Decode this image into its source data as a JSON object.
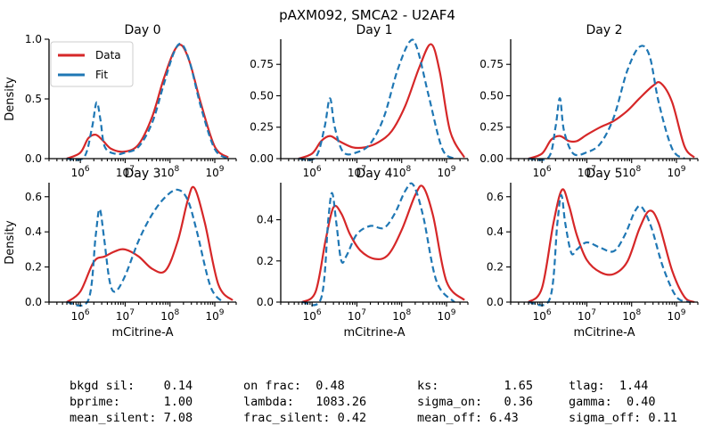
{
  "figure": {
    "title": "pAXM092, SMCA2 - U2AF4",
    "ylabel": "Density",
    "xlabel": "mCitrine-A"
  },
  "legend": {
    "data_label": "Data",
    "fit_label": "Fit",
    "data_color": "#d62728",
    "fit_color": "#1f77b4",
    "placement": "upper-left of Day 0"
  },
  "stats": {
    "rows": [
      [
        "bkgd sil:    0.14",
        "on frac:  0.48",
        "ks:         1.65",
        "tlag:  1.44"
      ],
      [
        "bprime:      1.00",
        "lambda:   1083.26",
        "sigma_on:   0.36",
        "gamma:  0.40"
      ],
      [
        "mean_silent: 7.08",
        "frac_silent: 0.42",
        "mean_off: 6.43",
        "sigma_off: 0.11"
      ]
    ]
  },
  "chart_data": [
    {
      "type": "line",
      "title": "Day 0",
      "xscale": "log",
      "xlim": [
        200000,
        3000000000
      ],
      "ylim": [
        0,
        1.0
      ],
      "yticks": [
        0.0,
        0.5,
        1.0
      ],
      "ytick_labels": [
        "0.0",
        "0.5",
        "1.0"
      ],
      "xticks": [
        1000000,
        10000000,
        100000000,
        1000000000
      ],
      "xtick_labels": [
        "10^6",
        "10^7",
        "10^8",
        "10^9"
      ],
      "series": [
        {
          "name": "Data",
          "color": "#d62728",
          "style": "solid",
          "x": [
            500000,
            1000000,
            1500000,
            2200000,
            3200000,
            5000000,
            10000000,
            20000000,
            40000000,
            70000000,
            120000000,
            180000000,
            280000000,
            500000000,
            1000000000,
            2000000000
          ],
          "y": [
            0.0,
            0.05,
            0.17,
            0.2,
            0.15,
            0.08,
            0.06,
            0.12,
            0.35,
            0.65,
            0.89,
            0.95,
            0.8,
            0.45,
            0.1,
            0.01
          ]
        },
        {
          "name": "Fit",
          "color": "#1f77b4",
          "style": "dashed",
          "x": [
            500000,
            1200000,
            1800000,
            2300000,
            2800000,
            3500000,
            6000000,
            10000000,
            20000000,
            40000000,
            70000000,
            120000000,
            180000000,
            280000000,
            500000000,
            1000000000,
            2000000000
          ],
          "y": [
            0.0,
            0.01,
            0.25,
            0.47,
            0.33,
            0.1,
            0.04,
            0.05,
            0.1,
            0.3,
            0.6,
            0.88,
            0.96,
            0.8,
            0.42,
            0.08,
            0.0
          ]
        }
      ]
    },
    {
      "type": "line",
      "title": "Day 1",
      "xscale": "log",
      "xlim": [
        200000,
        3000000000
      ],
      "ylim": [
        0,
        0.95
      ],
      "yticks": [
        0.0,
        0.25,
        0.5,
        0.75
      ],
      "ytick_labels": [
        "0.00",
        "0.25",
        "0.50",
        "0.75"
      ],
      "xticks": [
        1000000,
        10000000,
        100000000,
        1000000000
      ],
      "xtick_labels": [
        "10^6",
        "10^7",
        "10^8",
        "10^9"
      ],
      "series": [
        {
          "name": "Data",
          "color": "#d62728",
          "style": "solid",
          "x": [
            500000,
            1000000,
            1600000,
            2500000,
            4000000,
            8000000,
            15000000,
            30000000,
            60000000,
            120000000,
            250000000,
            450000000,
            700000000,
            1200000000,
            2500000000
          ],
          "y": [
            0.0,
            0.04,
            0.14,
            0.18,
            0.14,
            0.09,
            0.09,
            0.13,
            0.22,
            0.42,
            0.73,
            0.91,
            0.7,
            0.22,
            0.01
          ]
        },
        {
          "name": "Fit",
          "color": "#1f77b4",
          "style": "dashed",
          "x": [
            500000,
            1200000,
            1900000,
            2500000,
            3200000,
            5000000,
            10000000,
            20000000,
            40000000,
            80000000,
            150000000,
            220000000,
            400000000,
            800000000,
            1500000000
          ],
          "y": [
            0.0,
            0.01,
            0.25,
            0.48,
            0.25,
            0.05,
            0.05,
            0.12,
            0.33,
            0.7,
            0.93,
            0.88,
            0.5,
            0.08,
            0.0
          ]
        }
      ]
    },
    {
      "type": "line",
      "title": "Day 2",
      "xscale": "log",
      "xlim": [
        200000,
        3000000000
      ],
      "ylim": [
        0,
        0.95
      ],
      "yticks": [
        0.0,
        0.25,
        0.5,
        0.75
      ],
      "ytick_labels": [
        "0.00",
        "0.25",
        "0.50",
        "0.75"
      ],
      "xticks": [
        1000000,
        10000000,
        100000000,
        1000000000
      ],
      "xtick_labels": [
        "10^6",
        "10^7",
        "10^8",
        "10^9"
      ],
      "series": [
        {
          "name": "Data",
          "color": "#d62728",
          "style": "solid",
          "x": [
            500000,
            1000000,
            1600000,
            2500000,
            4000000,
            6000000,
            10000000,
            20000000,
            40000000,
            80000000,
            150000000,
            300000000,
            450000000,
            800000000,
            1500000000,
            2500000000
          ],
          "y": [
            0.0,
            0.04,
            0.15,
            0.18,
            0.14,
            0.14,
            0.19,
            0.25,
            0.3,
            0.38,
            0.48,
            0.58,
            0.6,
            0.45,
            0.1,
            0.01
          ]
        },
        {
          "name": "Fit",
          "color": "#1f77b4",
          "style": "dashed",
          "x": [
            500000,
            1400000,
            2000000,
            2500000,
            3100000,
            5000000,
            10000000,
            20000000,
            40000000,
            80000000,
            150000000,
            250000000,
            400000000,
            800000000,
            1500000000
          ],
          "y": [
            0.0,
            0.01,
            0.25,
            0.48,
            0.22,
            0.04,
            0.05,
            0.12,
            0.33,
            0.7,
            0.89,
            0.82,
            0.45,
            0.08,
            0.0
          ]
        }
      ]
    },
    {
      "type": "line",
      "title": "Day 3",
      "xscale": "log",
      "xlim": [
        200000,
        3000000000
      ],
      "ylim": [
        0,
        0.68
      ],
      "yticks": [
        0.0,
        0.2,
        0.4,
        0.6
      ],
      "ytick_labels": [
        "0.0",
        "0.2",
        "0.4",
        "0.6"
      ],
      "xticks": [
        1000000,
        10000000,
        100000000,
        1000000000
      ],
      "xtick_labels": [
        "10^6",
        "10^7",
        "10^8",
        "10^9"
      ],
      "series": [
        {
          "name": "Data",
          "color": "#d62728",
          "style": "solid",
          "x": [
            500000,
            1000000,
            2000000,
            3500000,
            6000000,
            10000000,
            20000000,
            40000000,
            80000000,
            150000000,
            250000000,
            350000000,
            600000000,
            1200000000,
            2500000000
          ],
          "y": [
            0.0,
            0.06,
            0.23,
            0.26,
            0.29,
            0.3,
            0.26,
            0.19,
            0.18,
            0.35,
            0.58,
            0.65,
            0.45,
            0.1,
            0.01
          ]
        },
        {
          "name": "Fit",
          "color": "#1f77b4",
          "style": "dashed",
          "x": [
            500000,
            1500000,
            2200000,
            2700000,
            3400000,
            4500000,
            6000000,
            10000000,
            20000000,
            40000000,
            80000000,
            150000000,
            250000000,
            400000000,
            800000000,
            1500000000
          ],
          "y": [
            0.0,
            0.01,
            0.38,
            0.53,
            0.36,
            0.12,
            0.06,
            0.15,
            0.35,
            0.5,
            0.6,
            0.64,
            0.58,
            0.4,
            0.09,
            0.0
          ]
        }
      ]
    },
    {
      "type": "line",
      "title": "Day 4",
      "xscale": "log",
      "xlim": [
        200000,
        3000000000
      ],
      "ylim": [
        0,
        0.58
      ],
      "yticks": [
        0.0,
        0.2,
        0.4
      ],
      "ytick_labels": [
        "0.0",
        "0.2",
        "0.4"
      ],
      "xticks": [
        1000000,
        10000000,
        100000000,
        1000000000
      ],
      "xtick_labels": [
        "10^6",
        "10^7",
        "10^8",
        "10^9"
      ],
      "series": [
        {
          "name": "Data",
          "color": "#d62728",
          "style": "solid",
          "x": [
            600000,
            1200000,
            2000000,
            3000000,
            4500000,
            7000000,
            12000000,
            25000000,
            50000000,
            100000000,
            200000000,
            300000000,
            500000000,
            1000000000,
            2500000000
          ],
          "y": [
            0.0,
            0.05,
            0.3,
            0.46,
            0.43,
            0.33,
            0.25,
            0.21,
            0.23,
            0.35,
            0.52,
            0.56,
            0.42,
            0.1,
            0.01
          ]
        },
        {
          "name": "Fit",
          "color": "#1f77b4",
          "style": "dashed",
          "x": [
            600000,
            1600000,
            2300000,
            2800000,
            3500000,
            4500000,
            6000000,
            10000000,
            20000000,
            40000000,
            70000000,
            120000000,
            180000000,
            300000000,
            600000000,
            1500000000
          ],
          "y": [
            0.0,
            0.02,
            0.4,
            0.53,
            0.38,
            0.2,
            0.23,
            0.33,
            0.37,
            0.36,
            0.43,
            0.54,
            0.57,
            0.42,
            0.1,
            0.0
          ]
        }
      ]
    },
    {
      "type": "line",
      "title": "Day 5",
      "xscale": "log",
      "xlim": [
        200000,
        3000000000
      ],
      "ylim": [
        0,
        0.68
      ],
      "yticks": [
        0.0,
        0.2,
        0.4,
        0.6
      ],
      "ytick_labels": [
        "0.0",
        "0.2",
        "0.4",
        "0.6"
      ],
      "xticks": [
        1000000,
        10000000,
        100000000,
        1000000000
      ],
      "xtick_labels": [
        "10^6",
        "10^7",
        "10^8",
        "10^9"
      ],
      "series": [
        {
          "name": "Data",
          "color": "#d62728",
          "style": "solid",
          "x": [
            500000,
            1000000,
            1800000,
            2800000,
            4000000,
            6000000,
            10000000,
            20000000,
            40000000,
            80000000,
            150000000,
            250000000,
            400000000,
            800000000,
            1500000000,
            2500000000
          ],
          "y": [
            0.0,
            0.08,
            0.45,
            0.64,
            0.55,
            0.38,
            0.24,
            0.17,
            0.16,
            0.23,
            0.42,
            0.52,
            0.45,
            0.18,
            0.03,
            0.0
          ]
        },
        {
          "name": "Fit",
          "color": "#1f77b4",
          "style": "dashed",
          "x": [
            500000,
            1500000,
            2200000,
            2700000,
            3300000,
            4500000,
            6000000,
            10000000,
            20000000,
            40000000,
            70000000,
            120000000,
            170000000,
            280000000,
            500000000,
            1000000000,
            2000000000
          ],
          "y": [
            0.0,
            0.02,
            0.45,
            0.61,
            0.45,
            0.28,
            0.3,
            0.34,
            0.31,
            0.29,
            0.38,
            0.52,
            0.54,
            0.42,
            0.2,
            0.03,
            0.0
          ]
        }
      ]
    }
  ]
}
